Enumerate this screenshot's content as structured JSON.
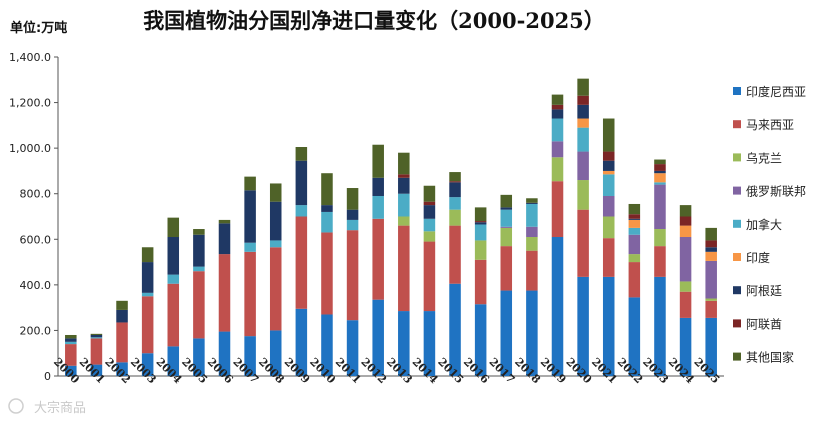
{
  "chart_data": {
    "type": "bar",
    "stacked": true,
    "title": "我国植物油分国别净进口量变化（2000-2025）",
    "unit_label": "单位:万吨",
    "ylim": [
      0,
      1400
    ],
    "yticks": [
      "0",
      "200.0",
      "400.0",
      "600.0",
      "800.0",
      "1,000.0",
      "1,200.0",
      "1,400.0"
    ],
    "ytick_values": [
      0,
      200,
      400,
      600,
      800,
      1000,
      1200,
      1400
    ],
    "categories": [
      "2000",
      "2001",
      "2002",
      "2003",
      "2004",
      "2005",
      "2006",
      "2007",
      "2008",
      "2009",
      "2010",
      "2011",
      "2012",
      "2013",
      "2014",
      "2015",
      "2016",
      "2017",
      "2018",
      "2019",
      "2020",
      "2021",
      "2022",
      "2023",
      "2024",
      "2025"
    ],
    "legend_position": "right",
    "series": [
      {
        "name": "印度尼西亚",
        "color": "#1f73c2",
        "values": [
          45,
          50,
          60,
          100,
          130,
          165,
          195,
          175,
          200,
          295,
          270,
          245,
          335,
          285,
          285,
          405,
          315,
          375,
          375,
          610,
          435,
          435,
          345,
          435,
          255,
          255
        ]
      },
      {
        "name": "马来西亚",
        "color": "#c0504d",
        "values": [
          95,
          115,
          175,
          250,
          275,
          295,
          340,
          370,
          365,
          405,
          360,
          395,
          355,
          375,
          305,
          255,
          195,
          195,
          175,
          245,
          295,
          170,
          155,
          135,
          115,
          75
        ]
      },
      {
        "name": "乌克兰",
        "color": "#9bbb59",
        "values": [
          0,
          0,
          0,
          0,
          0,
          0,
          0,
          0,
          0,
          0,
          0,
          0,
          0,
          40,
          45,
          70,
          85,
          80,
          60,
          105,
          130,
          95,
          35,
          75,
          45,
          10
        ]
      },
      {
        "name": "俄罗斯联邦",
        "color": "#8064a2",
        "values": [
          0,
          0,
          0,
          0,
          0,
          0,
          0,
          0,
          0,
          0,
          0,
          0,
          0,
          0,
          0,
          0,
          0,
          5,
          45,
          70,
          125,
          90,
          85,
          195,
          195,
          165
        ]
      },
      {
        "name": "加拿大",
        "color": "#4bacc6",
        "values": [
          10,
          5,
          0,
          15,
          40,
          20,
          0,
          40,
          30,
          50,
          90,
          45,
          100,
          100,
          55,
          55,
          70,
          75,
          100,
          100,
          105,
          95,
          30,
          10,
          0,
          0
        ]
      },
      {
        "name": "印度",
        "color": "#f79646",
        "values": [
          0,
          0,
          0,
          0,
          0,
          0,
          0,
          0,
          0,
          0,
          0,
          0,
          0,
          0,
          0,
          0,
          0,
          0,
          0,
          0,
          40,
          15,
          35,
          40,
          50,
          40
        ]
      },
      {
        "name": "阿根廷",
        "color": "#1f3864",
        "values": [
          15,
          10,
          55,
          135,
          165,
          140,
          135,
          230,
          170,
          195,
          30,
          45,
          80,
          70,
          60,
          65,
          10,
          10,
          5,
          40,
          60,
          45,
          5,
          10,
          0,
          20
        ]
      },
      {
        "name": "阿联酋",
        "color": "#7b2525",
        "values": [
          0,
          0,
          0,
          0,
          0,
          0,
          0,
          0,
          0,
          0,
          0,
          0,
          0,
          15,
          15,
          5,
          5,
          0,
          0,
          20,
          40,
          40,
          20,
          30,
          40,
          30
        ]
      },
      {
        "name": "其他国家",
        "color": "#4f6228",
        "values": [
          15,
          5,
          40,
          65,
          85,
          25,
          15,
          60,
          80,
          60,
          140,
          95,
          145,
          95,
          70,
          40,
          60,
          55,
          20,
          45,
          75,
          145,
          45,
          20,
          50,
          55
        ]
      }
    ]
  }
}
